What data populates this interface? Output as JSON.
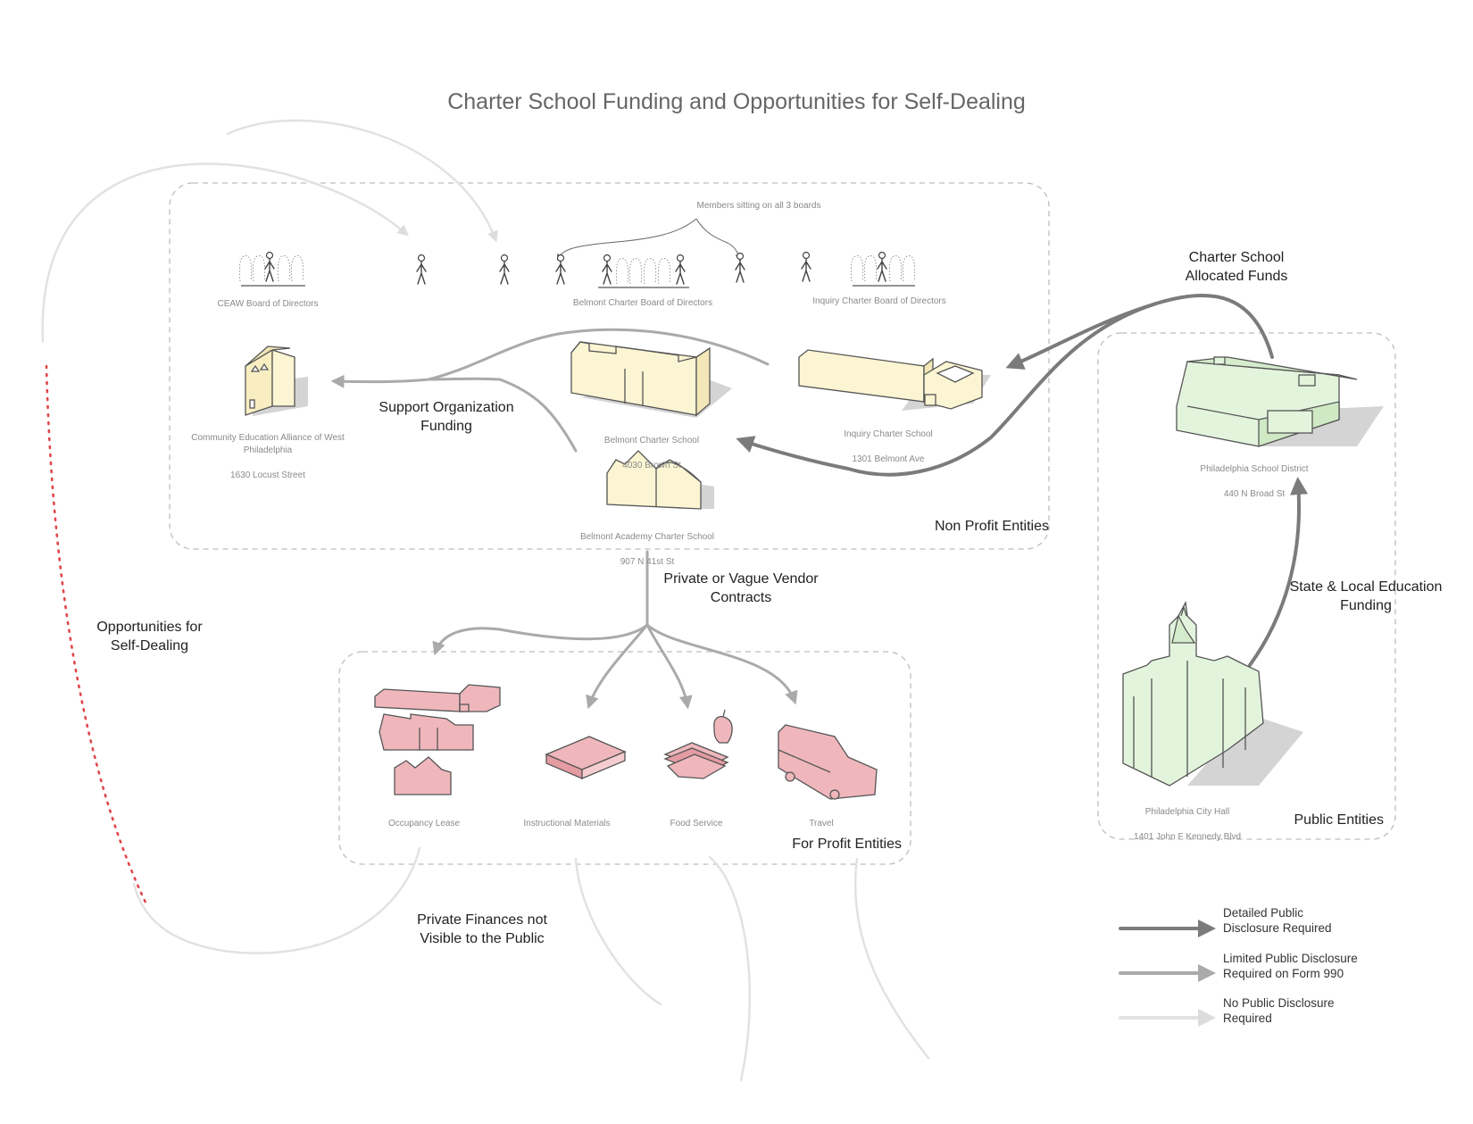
{
  "title": "Charter School Funding and Opportunities for Self-Dealing",
  "colors": {
    "detailed": "#7b7b7b",
    "limited": "#aaaaaa",
    "none": "#e2e2e2",
    "self_dealing": "#e0464b",
    "non_profit_fill": "#fbf5d3",
    "for_profit_fill": "#efb7bc",
    "public_fill": "#e3f4dc",
    "group_border": "#bdbdbd"
  },
  "boards": {
    "caption": "Members sitting on all 3 boards",
    "ceaw": "CEAW Board of Directors",
    "belmont": "Belmont Charter Board of Directors",
    "inquiry": "Inquiry Charter Board of Directors"
  },
  "entities": {
    "ceaw": {
      "name": "Community Education Alliance of West\nPhiladelphia",
      "address": "1630 Locust Street"
    },
    "belmont_charter": {
      "name": "Belmont Charter School",
      "address": "4030 Brown St"
    },
    "inquiry_charter": {
      "name": "Inquiry Charter School",
      "address": "1301 Belmont Ave"
    },
    "belmont_academy": {
      "name": "Belmont Academy Charter School",
      "address": "907 N 41st St"
    },
    "school_district": {
      "name": "Philadelphia School District",
      "address": "440 N Broad St"
    },
    "city_hall": {
      "name": "Philadelphia City Hall",
      "address": "1401 John F Kennedy Blvd"
    }
  },
  "vendors": {
    "occupancy": "Occupancy Lease",
    "instructional": "Instructional Materials",
    "food": "Food Service",
    "travel": "Travel"
  },
  "groups": {
    "non_profit": "Non Profit Entities",
    "for_profit": "For Profit Entities",
    "public": "Public Entities"
  },
  "flows": {
    "support_org": "Support Organization\nFunding",
    "charter_allocated": "Charter School\nAllocated Funds",
    "state_local": "State & Local Education\nFunding",
    "vendor_contracts": "Private or Vague Vendor\nContracts",
    "private_finances": "Private Finances not\nVisible to the Public",
    "self_dealing": "Opportunities for\nSelf-Dealing"
  },
  "legend": [
    {
      "text": "Detailed Public\nDisclosure Required",
      "color": "#7b7b7b"
    },
    {
      "text": "Limited Public Disclosure\nRequired on Form 990",
      "color": "#aaaaaa"
    },
    {
      "text": "No Public Disclosure\nRequired",
      "color": "#e2e2e2"
    }
  ]
}
